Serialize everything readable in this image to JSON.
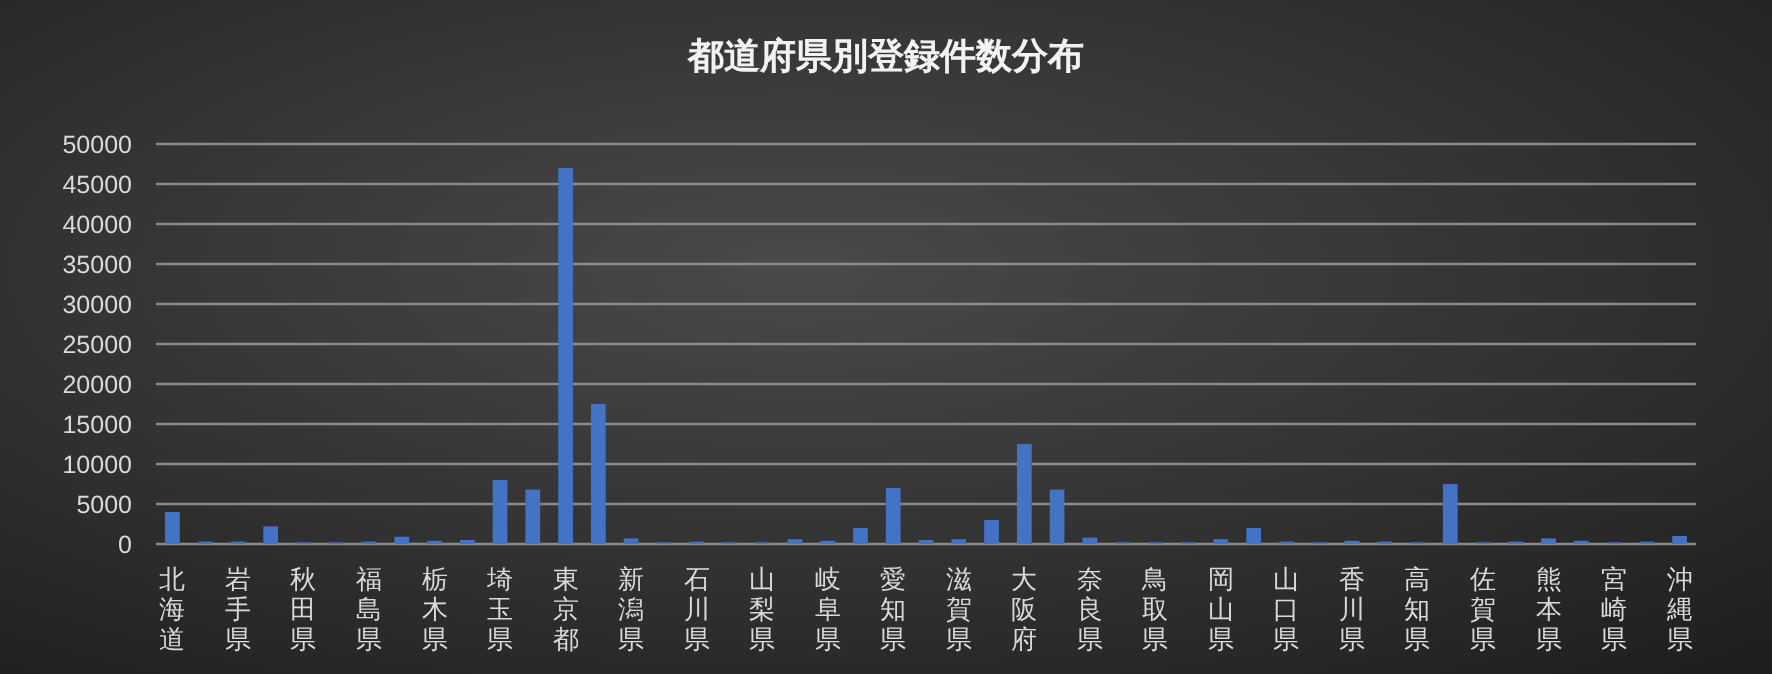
{
  "chart_data": {
    "type": "bar",
    "title": "都道府県別登録件数分布",
    "categories": [
      "北海道",
      null,
      "岩手県",
      null,
      "秋田県",
      null,
      "福島県",
      null,
      "栃木県",
      null,
      "埼玉県",
      null,
      "東京都",
      null,
      "新潟県",
      null,
      "石川県",
      null,
      "山梨県",
      null,
      "岐阜県",
      null,
      "愛知県",
      null,
      "滋賀県",
      null,
      "大阪府",
      null,
      "奈良県",
      null,
      "鳥取県",
      null,
      "岡山県",
      null,
      "山口県",
      null,
      "香川県",
      null,
      "高知県",
      null,
      "佐賀県",
      null,
      "熊本県",
      null,
      "宮崎県",
      null,
      "沖縄県"
    ],
    "values": [
      4000,
      300,
      300,
      2200,
      200,
      200,
      300,
      900,
      400,
      500,
      8000,
      6800,
      47000,
      17500,
      700,
      200,
      300,
      200,
      200,
      600,
      400,
      2000,
      7000,
      500,
      600,
      3000,
      12500,
      6800,
      800,
      200,
      200,
      200,
      600,
      2000,
      300,
      200,
      400,
      300,
      200,
      7500,
      200,
      300,
      700,
      400,
      200,
      300,
      1000
    ],
    "color": "#4472c4",
    "ylim": [
      0,
      50000
    ],
    "yticks": [
      0,
      5000,
      10000,
      15000,
      20000,
      25000,
      30000,
      35000,
      40000,
      45000,
      50000
    ],
    "grid": "y"
  }
}
